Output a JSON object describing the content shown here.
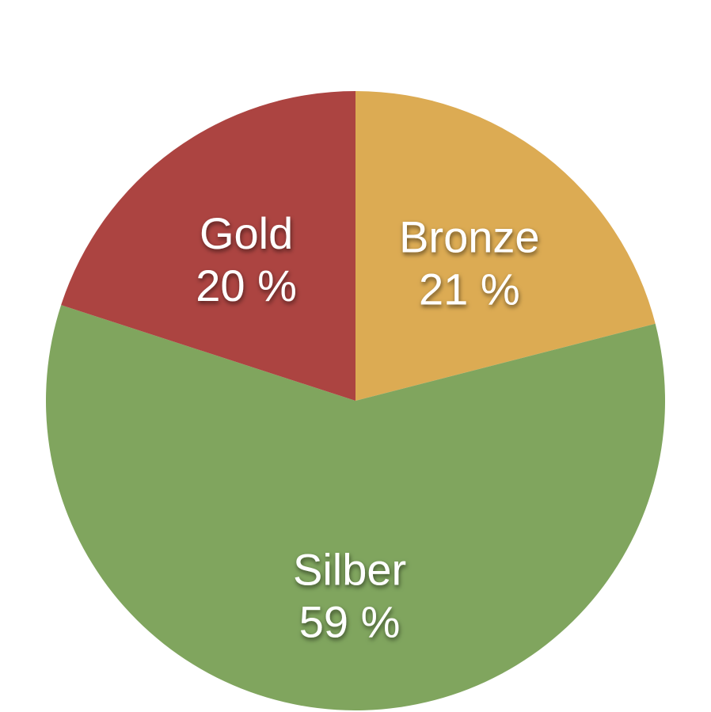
{
  "chart_data": {
    "type": "pie",
    "title": "",
    "slices": [
      {
        "name": "Bronze",
        "value": 21,
        "value_label": "21 %",
        "color": "#dcab53"
      },
      {
        "name": "Silber",
        "value": 59,
        "value_label": "59 %",
        "color": "#80a55e"
      },
      {
        "name": "Gold",
        "value": 20,
        "value_label": "20 %",
        "color": "#ac4441"
      }
    ],
    "start_angle": "12 o'clock",
    "direction": "clockwise",
    "legend": "none",
    "labels": "inside"
  }
}
